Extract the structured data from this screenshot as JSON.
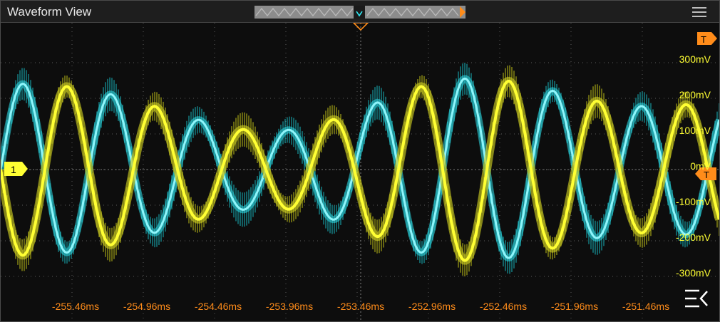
{
  "window": {
    "title": "Waveform View"
  },
  "overview_bar": {
    "icon": "timeline-overview-icon"
  },
  "markers": {
    "channel1_label": "1",
    "trigger_level_label": "T",
    "trigger_top_label": "T"
  },
  "voltage_labels": [
    "300mV",
    "200mV",
    "100mV",
    "0mV",
    "-100mV",
    "-200mV",
    "-300mV"
  ],
  "time_labels": [
    "-255.46ms",
    "-254.96ms",
    "-254.46ms",
    "-253.96ms",
    "-253.46ms",
    "-252.96ms",
    "-252.46ms",
    "-251.96ms",
    "-251.46ms"
  ],
  "colors": {
    "channel1": "#ffff33",
    "channel2": "#2fe2ec",
    "trigger": "#ff8c1a",
    "grid": "#5a5a5a"
  },
  "icons": [
    "hamburger-menu-icon",
    "horizontal-menu-icon"
  ]
}
